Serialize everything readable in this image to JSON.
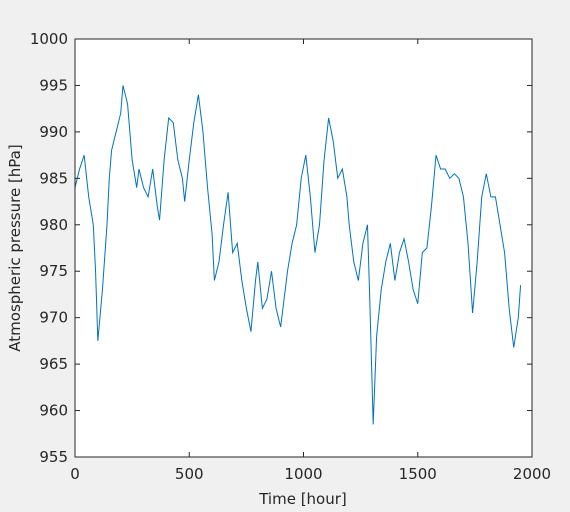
{
  "chart_data": {
    "type": "line",
    "xlabel": "Time [hour]",
    "ylabel": "Atmospheric pressure [hPa]",
    "xlim": [
      0,
      2000
    ],
    "xticks": [
      0,
      500,
      1000,
      1500,
      2000
    ],
    "ylim": [
      955,
      1000
    ],
    "yticks": [
      955,
      960,
      965,
      970,
      975,
      980,
      985,
      990,
      995,
      1000
    ],
    "series": [
      {
        "color": "#0072bd",
        "x": [
          0,
          20,
          40,
          60,
          80,
          90,
          100,
          120,
          140,
          150,
          160,
          180,
          200,
          210,
          230,
          250,
          270,
          280,
          300,
          320,
          340,
          360,
          370,
          390,
          410,
          430,
          450,
          470,
          480,
          500,
          520,
          540,
          560,
          580,
          600,
          610,
          630,
          650,
          670,
          690,
          710,
          730,
          750,
          770,
          790,
          800,
          820,
          840,
          860,
          880,
          900,
          930,
          950,
          970,
          990,
          1010,
          1030,
          1050,
          1070,
          1090,
          1110,
          1130,
          1150,
          1170,
          1190,
          1200,
          1220,
          1240,
          1260,
          1280,
          1290,
          1300,
          1305,
          1320,
          1340,
          1360,
          1380,
          1400,
          1420,
          1440,
          1460,
          1480,
          1500,
          1520,
          1540,
          1560,
          1580,
          1600,
          1620,
          1640,
          1660,
          1680,
          1700,
          1720,
          1740,
          1760,
          1780,
          1800,
          1820,
          1840,
          1860,
          1880,
          1900,
          1920,
          1940,
          1950
        ],
        "values": [
          984,
          986,
          987.5,
          983,
          980,
          975,
          967.5,
          973,
          980,
          985,
          988,
          990,
          992,
          995,
          993,
          987,
          984,
          986,
          984,
          983,
          986,
          982,
          980.5,
          987,
          991.5,
          991,
          987,
          985,
          982.5,
          987,
          991,
          994,
          990,
          984,
          979,
          974,
          976,
          980,
          983.5,
          977,
          978,
          974,
          971,
          968.5,
          974,
          976,
          971,
          972,
          975,
          971,
          969,
          975,
          978,
          980,
          985,
          987.5,
          983,
          977,
          980,
          987,
          991.5,
          989,
          985,
          986,
          983,
          980,
          976,
          974,
          978,
          980,
          972,
          963,
          958.5,
          968,
          973,
          976,
          978,
          974,
          977,
          978.5,
          976,
          973,
          971.5,
          977,
          977.5,
          982,
          987.5,
          986,
          986,
          985,
          985.5,
          985,
          983,
          978,
          970.5,
          976,
          983,
          985.5,
          983,
          983,
          980,
          977,
          971,
          966.8,
          970,
          973.5
        ]
      }
    ]
  }
}
